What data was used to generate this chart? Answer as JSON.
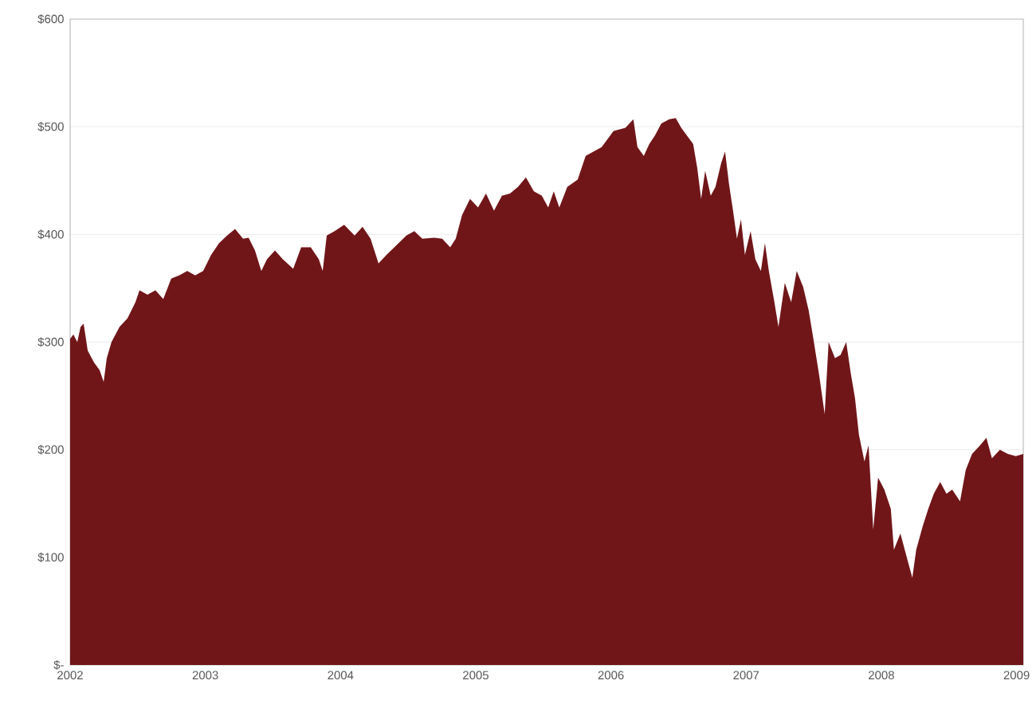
{
  "chart_data": {
    "type": "area",
    "x": [
      2002,
      2002.024,
      2002.053,
      2002.077,
      2002.1,
      2002.13,
      2002.177,
      2002.218,
      2002.248,
      2002.271,
      2002.306,
      2002.365,
      2002.424,
      2002.483,
      2002.513,
      2002.572,
      2002.631,
      2002.689,
      2002.748,
      2002.807,
      2002.866,
      2002.925,
      2002.984,
      2003.043,
      2003.102,
      2003.161,
      2003.22,
      2003.279,
      2003.32,
      2003.367,
      2003.414,
      2003.456,
      2003.515,
      2003.573,
      2003.65,
      2003.709,
      2003.78,
      2003.839,
      2003.868,
      2003.898,
      2003.956,
      2004.027,
      2004.104,
      2004.163,
      2004.222,
      2004.281,
      2004.34,
      2004.398,
      2004.487,
      2004.546,
      2004.605,
      2004.693,
      2004.752,
      2004.811,
      2004.852,
      2004.899,
      2004.958,
      2005.017,
      2005.076,
      2005.135,
      2005.194,
      2005.253,
      2005.312,
      2005.371,
      2005.43,
      2005.489,
      2005.536,
      2005.577,
      2005.618,
      2005.677,
      2005.754,
      2005.813,
      2005.872,
      2005.931,
      2006.019,
      2006.107,
      2006.166,
      2006.196,
      2006.243,
      2006.284,
      2006.326,
      2006.373,
      2006.432,
      2006.479,
      2006.52,
      2006.561,
      2006.608,
      2006.638,
      2006.667,
      2006.697,
      2006.738,
      2006.773,
      2006.815,
      2006.844,
      2006.873,
      2006.903,
      2006.932,
      2006.962,
      2006.991,
      2007.033,
      2007.068,
      2007.109,
      2007.139,
      2007.168,
      2007.209,
      2007.239,
      2007.286,
      2007.333,
      2007.374,
      2007.422,
      2007.463,
      2007.492,
      2007.539,
      2007.581,
      2007.61,
      2007.657,
      2007.698,
      2007.74,
      2007.775,
      2007.805,
      2007.834,
      2007.875,
      2007.905,
      2007.94,
      2007.976,
      2008.022,
      2008.07,
      2008.093,
      2008.141,
      2008.188,
      2008.229,
      2008.258,
      2008.306,
      2008.347,
      2008.388,
      2008.435,
      2008.482,
      2008.524,
      2008.582,
      2008.624,
      2008.671,
      2008.73,
      2008.777,
      2008.818,
      2008.877,
      2008.936,
      2008.995,
      2009.05
    ],
    "values": [
      303,
      307,
      300,
      314,
      317,
      292,
      281,
      274,
      263,
      285,
      300,
      314,
      322,
      337,
      348,
      344,
      348,
      340,
      359,
      362,
      366,
      362,
      366,
      381,
      392,
      399,
      405,
      396,
      397,
      385,
      366,
      377,
      385,
      377,
      368,
      388,
      388,
      377,
      366,
      399,
      403,
      409,
      399,
      407,
      396,
      373,
      381,
      388,
      399,
      403,
      396,
      397,
      396,
      388,
      396,
      418,
      433,
      425,
      438,
      422,
      436,
      438,
      444,
      453,
      440,
      436,
      425,
      440,
      425,
      444,
      451,
      473,
      477,
      481,
      496,
      499,
      507,
      481,
      473,
      484,
      492,
      503,
      507,
      508,
      499,
      492,
      484,
      462,
      433,
      459,
      436,
      444,
      466,
      477,
      447,
      422,
      396,
      414,
      381,
      403,
      377,
      366,
      392,
      366,
      337,
      314,
      355,
      337,
      366,
      351,
      329,
      307,
      270,
      233,
      300,
      285,
      288,
      300,
      270,
      248,
      214,
      189,
      204,
      126,
      174,
      163,
      145,
      107,
      122,
      100,
      81,
      107,
      129,
      145,
      159,
      170,
      159,
      163,
      152,
      181,
      196,
      204,
      211,
      192,
      200,
      196,
      194,
      196
    ],
    "color": "#701619",
    "xlim": [
      2002,
      2009.05
    ],
    "ylim": [
      0,
      600
    ],
    "xticks": [
      2002,
      2003,
      2004,
      2005,
      2006,
      2007,
      2008,
      2009
    ],
    "yticks": [
      {
        "value": 0,
        "label": "$-"
      },
      {
        "value": 100,
        "label": "$100"
      },
      {
        "value": 200,
        "label": "$200"
      },
      {
        "value": 300,
        "label": "$300"
      },
      {
        "value": 400,
        "label": "$400"
      },
      {
        "value": 500,
        "label": "$500"
      },
      {
        "value": 600,
        "label": "$600"
      }
    ],
    "grid": "y"
  }
}
